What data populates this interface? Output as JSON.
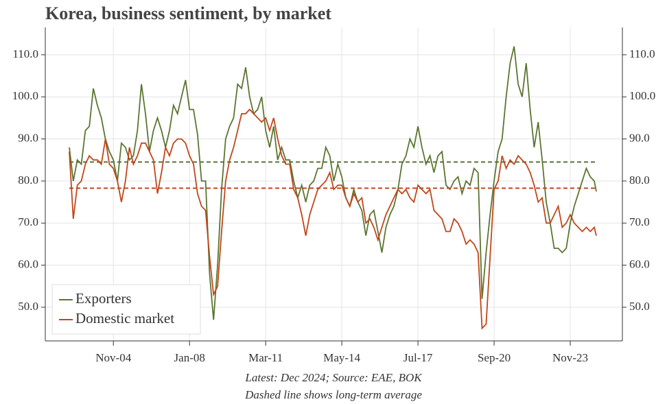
{
  "chart_data": {
    "type": "line",
    "title": "Korea, business sentiment, by market",
    "caption": "Latest: Dec 2024; Source: EAE, BOK",
    "note": "Dashed line shows long-term average",
    "x": [
      "Jan-03",
      "Mar-03",
      "May-03",
      "Jul-03",
      "Sep-03",
      "Nov-03",
      "Jan-04",
      "Mar-04",
      "May-04",
      "Jul-04",
      "Sep-04",
      "Nov-04",
      "Jan-05",
      "Mar-05",
      "May-05",
      "Jul-05",
      "Sep-05",
      "Nov-05",
      "Jan-06",
      "Mar-06",
      "May-06",
      "Jul-06",
      "Sep-06",
      "Nov-06",
      "Jan-07",
      "Mar-07",
      "May-07",
      "Jul-07",
      "Sep-07",
      "Nov-07",
      "Jan-08",
      "Mar-08",
      "May-08",
      "Jul-08",
      "Sep-08",
      "Nov-08",
      "Jan-09",
      "Mar-09",
      "May-09",
      "Jul-09",
      "Sep-09",
      "Nov-09",
      "Jan-10",
      "Mar-10",
      "May-10",
      "Jul-10",
      "Sep-10",
      "Nov-10",
      "Jan-11",
      "Mar-11",
      "May-11",
      "Jul-11",
      "Sep-11",
      "Nov-11",
      "Jan-12",
      "Mar-12",
      "May-12",
      "Jul-12",
      "Sep-12",
      "Nov-12",
      "Jan-13",
      "Mar-13",
      "May-13",
      "Jul-13",
      "Sep-13",
      "Nov-13",
      "Jan-14",
      "Mar-14",
      "May-14",
      "Jul-14",
      "Sep-14",
      "Nov-14",
      "Jan-15",
      "Mar-15",
      "May-15",
      "Jul-15",
      "Sep-15",
      "Nov-15",
      "Jan-16",
      "Mar-16",
      "May-16",
      "Jul-16",
      "Sep-16",
      "Nov-16",
      "Jan-17",
      "Mar-17",
      "May-17",
      "Jul-17",
      "Sep-17",
      "Nov-17",
      "Jan-18",
      "Mar-18",
      "May-18",
      "Jul-18",
      "Sep-18",
      "Nov-18",
      "Jan-19",
      "Mar-19",
      "May-19",
      "Jul-19",
      "Sep-19",
      "Nov-19",
      "Jan-20",
      "Mar-20",
      "May-20",
      "Jul-20",
      "Sep-20",
      "Nov-20",
      "Jan-21",
      "Mar-21",
      "May-21",
      "Jul-21",
      "Sep-21",
      "Nov-21",
      "Jan-22",
      "Mar-22",
      "May-22",
      "Jul-22",
      "Sep-22",
      "Nov-22",
      "Jan-23",
      "Mar-23",
      "May-23",
      "Jul-23",
      "Sep-23",
      "Nov-23",
      "Jan-24",
      "Mar-24",
      "May-24",
      "Jul-24",
      "Sep-24",
      "Nov-24",
      "Dec-24"
    ],
    "xticks": [
      "Nov-04",
      "Jan-08",
      "Mar-11",
      "May-14",
      "Jul-17",
      "Sep-20",
      "Nov-23"
    ],
    "series": [
      {
        "name": "Exporters",
        "color": "#5a7530",
        "average": 84.5,
        "values": [
          88,
          80,
          85,
          84,
          92,
          93,
          102,
          98,
          95,
          90,
          87,
          85,
          80,
          89,
          88,
          85,
          86,
          92,
          103,
          96,
          87,
          92,
          95,
          92,
          88,
          92,
          98,
          96,
          100,
          104,
          97,
          97,
          91,
          80,
          80,
          58,
          47,
          60,
          78,
          90,
          93,
          95,
          103,
          102,
          107,
          100,
          96,
          97,
          100,
          92,
          88,
          93,
          85,
          88,
          85,
          85,
          80,
          76,
          79,
          75,
          79,
          80,
          83,
          83,
          88,
          86,
          80,
          84,
          81,
          76,
          74,
          78,
          75,
          73,
          67,
          72,
          73,
          68,
          63,
          69,
          72,
          74,
          78,
          84,
          86,
          90,
          88,
          93,
          88,
          84,
          86,
          82,
          86,
          87,
          79,
          78,
          80,
          81,
          77,
          80,
          79,
          83,
          82,
          52,
          63,
          72,
          80,
          87,
          90,
          100,
          108,
          112,
          103,
          100,
          108,
          97,
          88,
          94,
          85,
          75,
          70,
          64,
          64,
          63,
          64,
          70,
          74,
          77,
          80,
          83,
          81,
          80,
          77.5
        ]
      },
      {
        "name": "Domestic market",
        "color": "#c0461a",
        "average": 78.3,
        "values": [
          87,
          71,
          79,
          80,
          84,
          86,
          85,
          85,
          84,
          90,
          84,
          83,
          80,
          75,
          80,
          88,
          84,
          86,
          89,
          89,
          87,
          85,
          77,
          82,
          88,
          86,
          89,
          90,
          90,
          89,
          86,
          84,
          77,
          74,
          73,
          62,
          53,
          55,
          68,
          80,
          85,
          88,
          92,
          96,
          96,
          97,
          96,
          95,
          94,
          95,
          92,
          95,
          90,
          86,
          84,
          84,
          78,
          76,
          72,
          67,
          72,
          75,
          78,
          79,
          80,
          82,
          78,
          79,
          79,
          76,
          74,
          77,
          75,
          76,
          70,
          71,
          69,
          66,
          69,
          72,
          74,
          76,
          78,
          77,
          78,
          76,
          75,
          79,
          78,
          77,
          78,
          73,
          72,
          71,
          68,
          68,
          71,
          70,
          68,
          65,
          66,
          65,
          63,
          45,
          46,
          62,
          78,
          80,
          86,
          83,
          85,
          84,
          86,
          85,
          84,
          82,
          79,
          75,
          76,
          70,
          70,
          72,
          74,
          69,
          70,
          72,
          70,
          69,
          68,
          69,
          68,
          69,
          67
        ]
      }
    ],
    "ylim": [
      42,
      116.5
    ],
    "yticks": [
      {
        "value": 50,
        "label": "50.0"
      },
      {
        "value": 60,
        "label": "60.0"
      },
      {
        "value": 70,
        "label": "70.0"
      },
      {
        "value": 80,
        "label": "80.0"
      },
      {
        "value": 90,
        "label": "90.0"
      },
      {
        "value": 100,
        "label": "100.0"
      },
      {
        "value": 110,
        "label": "110.0"
      }
    ],
    "grid": true,
    "legend": "lower left"
  }
}
